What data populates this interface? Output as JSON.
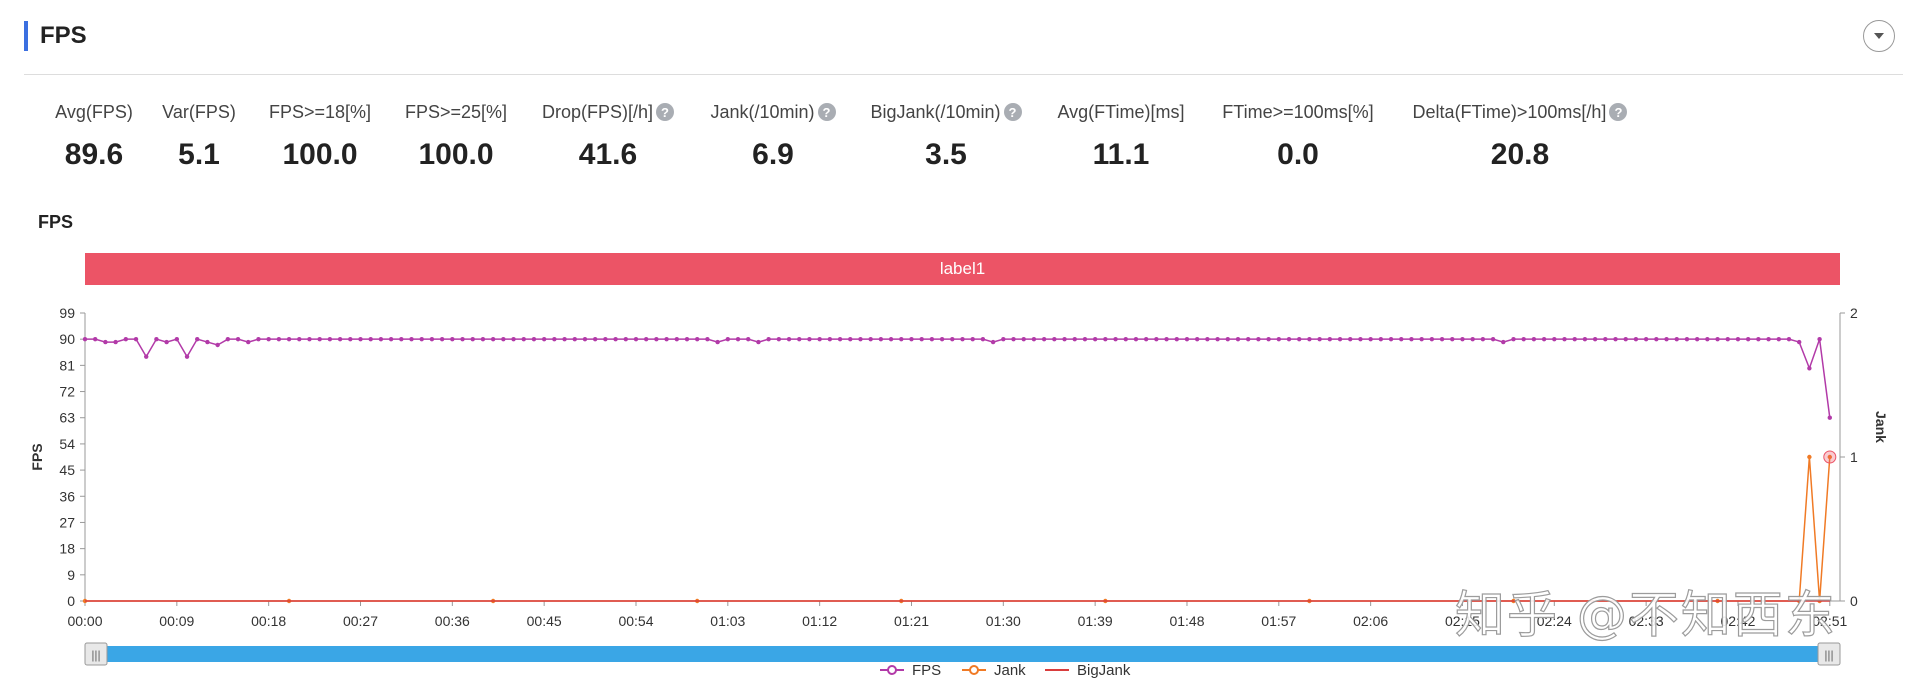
{
  "header": {
    "title": "FPS"
  },
  "metrics": [
    {
      "label": "Avg(FPS)",
      "value": "89.6",
      "help": false
    },
    {
      "label": "Var(FPS)",
      "value": "5.1",
      "help": false
    },
    {
      "label": "FPS>=18[%]",
      "value": "100.0",
      "help": false
    },
    {
      "label": "FPS>=25[%]",
      "value": "100.0",
      "help": false
    },
    {
      "label": "Drop(FPS)[/h]",
      "value": "41.6",
      "help": true
    },
    {
      "label": "Jank(/10min)",
      "value": "6.9",
      "help": true
    },
    {
      "label": "BigJank(/10min)",
      "value": "3.5",
      "help": true
    },
    {
      "label": "Avg(FTime)[ms]",
      "value": "11.1",
      "help": false
    },
    {
      "label": "FTime>=100ms[%]",
      "value": "0.0",
      "help": false
    },
    {
      "label": "Delta(FTime)>100ms[/h]",
      "value": "20.8",
      "help": true
    }
  ],
  "chart_title": "FPS",
  "label_band": "label1",
  "watermark": "知乎 @不知西东",
  "colors": {
    "fps": "#b23aa8",
    "jank": "#f07a25",
    "bigjank": "#d93d3d",
    "band": "#ec5466",
    "slider": "#3aa6e6"
  },
  "chart_data": {
    "type": "line",
    "title": "FPS",
    "ylabel": "FPS",
    "y2label": "Jank",
    "ylim": [
      0,
      99
    ],
    "y2lim": [
      0,
      2
    ],
    "yticks": [
      "0",
      "9",
      "18",
      "27",
      "36",
      "45",
      "54",
      "63",
      "72",
      "81",
      "90",
      "99"
    ],
    "y2ticks": [
      "0",
      "1",
      "2"
    ],
    "xticks": [
      "00:00",
      "00:09",
      "00:18",
      "00:27",
      "00:36",
      "00:45",
      "00:54",
      "01:03",
      "01:12",
      "01:21",
      "01:30",
      "01:39",
      "01:48",
      "01:57",
      "02:06",
      "02:15",
      "02:24",
      "02:33",
      "02:42",
      "02:51"
    ],
    "x_range_s": [
      0,
      172
    ],
    "legend_position": "bottom-center",
    "series": [
      {
        "name": "FPS",
        "axis": "left",
        "points": [
          [
            0,
            90
          ],
          [
            1,
            90
          ],
          [
            2,
            89
          ],
          [
            3,
            89
          ],
          [
            4,
            90
          ],
          [
            5,
            90
          ],
          [
            6,
            84
          ],
          [
            7,
            90
          ],
          [
            8,
            89
          ],
          [
            9,
            90
          ],
          [
            10,
            84
          ],
          [
            11,
            90
          ],
          [
            12,
            89
          ],
          [
            13,
            88
          ],
          [
            14,
            90
          ],
          [
            15,
            90
          ],
          [
            16,
            89
          ],
          [
            17,
            90
          ],
          [
            18,
            90
          ],
          [
            19,
            90
          ],
          [
            20,
            90
          ],
          [
            21,
            90
          ],
          [
            22,
            90
          ],
          [
            23,
            90
          ],
          [
            24,
            90
          ],
          [
            25,
            90
          ],
          [
            26,
            90
          ],
          [
            27,
            90
          ],
          [
            28,
            90
          ],
          [
            29,
            90
          ],
          [
            30,
            90
          ],
          [
            31,
            90
          ],
          [
            32,
            90
          ],
          [
            33,
            90
          ],
          [
            34,
            90
          ],
          [
            35,
            90
          ],
          [
            36,
            90
          ],
          [
            37,
            90
          ],
          [
            38,
            90
          ],
          [
            39,
            90
          ],
          [
            40,
            90
          ],
          [
            41,
            90
          ],
          [
            42,
            90
          ],
          [
            43,
            90
          ],
          [
            44,
            90
          ],
          [
            45,
            90
          ],
          [
            46,
            90
          ],
          [
            47,
            90
          ],
          [
            48,
            90
          ],
          [
            49,
            90
          ],
          [
            50,
            90
          ],
          [
            51,
            90
          ],
          [
            52,
            90
          ],
          [
            53,
            90
          ],
          [
            54,
            90
          ],
          [
            55,
            90
          ],
          [
            56,
            90
          ],
          [
            57,
            90
          ],
          [
            58,
            90
          ],
          [
            59,
            90
          ],
          [
            60,
            90
          ],
          [
            61,
            90
          ],
          [
            62,
            89
          ],
          [
            63,
            90
          ],
          [
            64,
            90
          ],
          [
            65,
            90
          ],
          [
            66,
            89
          ],
          [
            67,
            90
          ],
          [
            68,
            90
          ],
          [
            69,
            90
          ],
          [
            70,
            90
          ],
          [
            71,
            90
          ],
          [
            72,
            90
          ],
          [
            73,
            90
          ],
          [
            74,
            90
          ],
          [
            75,
            90
          ],
          [
            76,
            90
          ],
          [
            77,
            90
          ],
          [
            78,
            90
          ],
          [
            79,
            90
          ],
          [
            80,
            90
          ],
          [
            81,
            90
          ],
          [
            82,
            90
          ],
          [
            83,
            90
          ],
          [
            84,
            90
          ],
          [
            85,
            90
          ],
          [
            86,
            90
          ],
          [
            87,
            90
          ],
          [
            88,
            90
          ],
          [
            89,
            89
          ],
          [
            90,
            90
          ],
          [
            91,
            90
          ],
          [
            92,
            90
          ],
          [
            93,
            90
          ],
          [
            94,
            90
          ],
          [
            95,
            90
          ],
          [
            96,
            90
          ],
          [
            97,
            90
          ],
          [
            98,
            90
          ],
          [
            99,
            90
          ],
          [
            100,
            90
          ],
          [
            101,
            90
          ],
          [
            102,
            90
          ],
          [
            103,
            90
          ],
          [
            104,
            90
          ],
          [
            105,
            90
          ],
          [
            106,
            90
          ],
          [
            107,
            90
          ],
          [
            108,
            90
          ],
          [
            109,
            90
          ],
          [
            110,
            90
          ],
          [
            111,
            90
          ],
          [
            112,
            90
          ],
          [
            113,
            90
          ],
          [
            114,
            90
          ],
          [
            115,
            90
          ],
          [
            116,
            90
          ],
          [
            117,
            90
          ],
          [
            118,
            90
          ],
          [
            119,
            90
          ],
          [
            120,
            90
          ],
          [
            121,
            90
          ],
          [
            122,
            90
          ],
          [
            123,
            90
          ],
          [
            124,
            90
          ],
          [
            125,
            90
          ],
          [
            126,
            90
          ],
          [
            127,
            90
          ],
          [
            128,
            90
          ],
          [
            129,
            90
          ],
          [
            130,
            90
          ],
          [
            131,
            90
          ],
          [
            132,
            90
          ],
          [
            133,
            90
          ],
          [
            134,
            90
          ],
          [
            135,
            90
          ],
          [
            136,
            90
          ],
          [
            137,
            90
          ],
          [
            138,
            90
          ],
          [
            139,
            89
          ],
          [
            140,
            90
          ],
          [
            141,
            90
          ],
          [
            142,
            90
          ],
          [
            143,
            90
          ],
          [
            144,
            90
          ],
          [
            145,
            90
          ],
          [
            146,
            90
          ],
          [
            147,
            90
          ],
          [
            148,
            90
          ],
          [
            149,
            90
          ],
          [
            150,
            90
          ],
          [
            151,
            90
          ],
          [
            152,
            90
          ],
          [
            153,
            90
          ],
          [
            154,
            90
          ],
          [
            155,
            90
          ],
          [
            156,
            90
          ],
          [
            157,
            90
          ],
          [
            158,
            90
          ],
          [
            159,
            90
          ],
          [
            160,
            90
          ],
          [
            161,
            90
          ],
          [
            162,
            90
          ],
          [
            163,
            90
          ],
          [
            164,
            90
          ],
          [
            165,
            90
          ],
          [
            166,
            90
          ],
          [
            167,
            90
          ],
          [
            168,
            89
          ],
          [
            169,
            80
          ],
          [
            170,
            90
          ],
          [
            171,
            63
          ]
        ]
      },
      {
        "name": "Jank",
        "axis": "right",
        "points": [
          [
            0,
            0
          ],
          [
            20,
            0
          ],
          [
            40,
            0
          ],
          [
            60,
            0
          ],
          [
            80,
            0
          ],
          [
            100,
            0
          ],
          [
            120,
            0
          ],
          [
            140,
            0
          ],
          [
            160,
            0
          ],
          [
            168,
            0
          ],
          [
            169,
            1
          ],
          [
            170,
            0
          ],
          [
            171,
            1
          ]
        ]
      },
      {
        "name": "BigJank",
        "axis": "right",
        "points": [
          [
            0,
            0
          ],
          [
            171,
            0
          ]
        ]
      }
    ]
  }
}
